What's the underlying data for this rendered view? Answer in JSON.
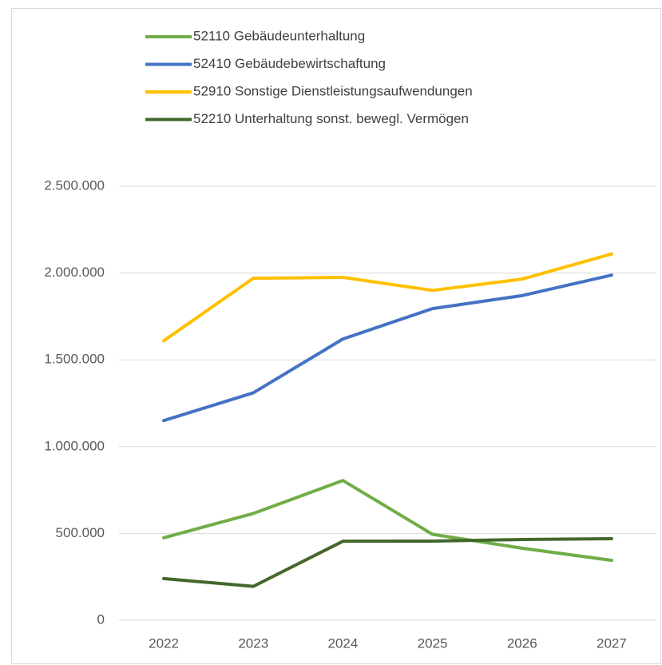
{
  "chart_data": {
    "type": "line",
    "categories": [
      "2022",
      "2023",
      "2024",
      "2025",
      "2026",
      "2027"
    ],
    "series": [
      {
        "name": "52110 Gebäudeunterhaltung",
        "color": "#70ad47",
        "values": [
          475000,
          615000,
          805000,
          495000,
          415000,
          345000
        ]
      },
      {
        "name": "52410 Gebäudebewirtschaftung",
        "color": "#4472c4",
        "values": [
          1150000,
          1310000,
          1620000,
          1795000,
          1870000,
          1988000
        ]
      },
      {
        "name": "52910 Sonstige Dienstleistungsaufwendungen",
        "color": "#ffc000",
        "values": [
          1610000,
          1970000,
          1975000,
          1900000,
          1965000,
          2110000
        ]
      },
      {
        "name": "52210 Unterhaltung sonst. bewegl. Vermögen",
        "color": "#43682b",
        "values": [
          240000,
          195000,
          455000,
          456000,
          465000,
          470000
        ]
      }
    ],
    "ylim": [
      0,
      2500000
    ],
    "yticks": [
      0,
      {
        "value": 500000,
        "label": "500.000"
      },
      {
        "value": 1000000,
        "label": "1.000.000"
      },
      {
        "value": 1500000,
        "label": "1.500.000"
      },
      {
        "value": 2000000,
        "label": "2.000.000"
      },
      {
        "value": 2500000,
        "label": "2.500.000"
      }
    ],
    "grid": true,
    "legend": "top"
  }
}
